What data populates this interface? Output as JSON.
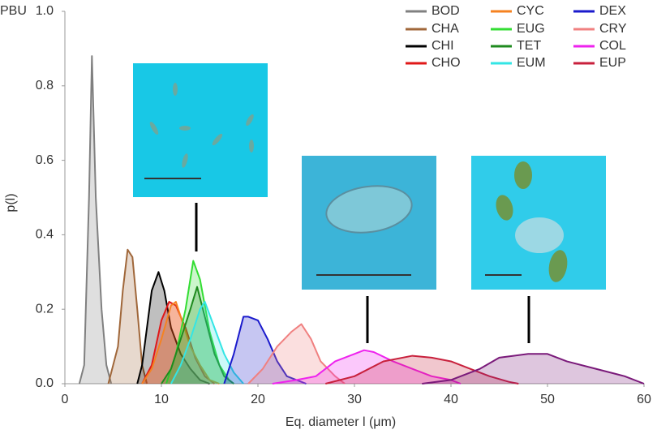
{
  "chart_data": {
    "type": "area",
    "x_label": "Eq. diameter l (μm)",
    "y_label": "p(l)",
    "xlim": [
      0,
      60
    ],
    "ylim": [
      0,
      1.0
    ],
    "xticks": [
      0,
      10,
      20,
      30,
      40,
      50,
      60
    ],
    "yticks": [
      {
        "value": 0,
        "label": "0.0"
      },
      {
        "value": 0.2,
        "label": "0.2"
      },
      {
        "value": 0.4,
        "label": "0.4"
      },
      {
        "value": 0.6,
        "label": "0.6"
      },
      {
        "value": 0.8,
        "label": "0.8"
      },
      {
        "value": 1.0,
        "label": "1.0"
      }
    ],
    "legend": "upper right",
    "series": [
      {
        "name": "BOD",
        "color": "#808080",
        "x": [
          1.5,
          2,
          2.5,
          2.8,
          3.2,
          3.8,
          4.3,
          4.8
        ],
        "values": [
          0,
          0.05,
          0.5,
          0.88,
          0.5,
          0.2,
          0.05,
          0
        ]
      },
      {
        "name": "CHA",
        "color": "#a0673a",
        "x": [
          4.5,
          5.5,
          6,
          6.5,
          7,
          7.5,
          8,
          8.5
        ],
        "values": [
          0,
          0.1,
          0.25,
          0.36,
          0.34,
          0.2,
          0.05,
          0
        ]
      },
      {
        "name": "CHI",
        "color": "#000000",
        "x": [
          7.5,
          8,
          8.5,
          9,
          9.7,
          10.3,
          11,
          12,
          13,
          14,
          15
        ],
        "values": [
          0,
          0.05,
          0.15,
          0.25,
          0.3,
          0.25,
          0.15,
          0.08,
          0.04,
          0.01,
          0
        ]
      },
      {
        "name": "CHO",
        "color": "#e01818",
        "x": [
          8,
          9,
          10,
          10.8,
          11.5,
          12.5,
          13.5,
          14.5,
          15.5
        ],
        "values": [
          0,
          0.05,
          0.17,
          0.22,
          0.21,
          0.15,
          0.07,
          0.02,
          0
        ]
      },
      {
        "name": "CYC",
        "color": "#f58220",
        "x": [
          8,
          9,
          10,
          11,
          11.5,
          12,
          13,
          14,
          15,
          16
        ],
        "values": [
          0,
          0.04,
          0.12,
          0.21,
          0.22,
          0.18,
          0.1,
          0.05,
          0.01,
          0
        ]
      },
      {
        "name": "EUG",
        "color": "#33dd33",
        "x": [
          10.5,
          11.5,
          12.5,
          13.3,
          14,
          15,
          16,
          17,
          17.5
        ],
        "values": [
          0,
          0.08,
          0.2,
          0.33,
          0.28,
          0.14,
          0.05,
          0.01,
          0
        ]
      },
      {
        "name": "TET",
        "color": "#1e8a1e",
        "x": [
          10,
          11,
          12,
          13,
          13.7,
          14.5,
          15.5,
          16.5,
          17.5
        ],
        "values": [
          0,
          0.04,
          0.12,
          0.2,
          0.26,
          0.18,
          0.08,
          0.02,
          0
        ]
      },
      {
        "name": "EUM",
        "color": "#33e5e5",
        "x": [
          11,
          12,
          13,
          14,
          14.5,
          15.5,
          16.5,
          17.5,
          18.5
        ],
        "values": [
          0,
          0.05,
          0.12,
          0.2,
          0.22,
          0.15,
          0.08,
          0.03,
          0
        ]
      },
      {
        "name": "DEX",
        "color": "#1a1acc",
        "x": [
          16.5,
          17.5,
          18.5,
          19,
          20,
          21,
          22,
          23,
          25
        ],
        "values": [
          0,
          0.08,
          0.18,
          0.18,
          0.17,
          0.12,
          0.06,
          0.02,
          0
        ]
      },
      {
        "name": "CRY",
        "color": "#f08080",
        "x": [
          19,
          20.5,
          22,
          23.5,
          24.5,
          25.5,
          26.5,
          28,
          29
        ],
        "values": [
          0,
          0.04,
          0.1,
          0.14,
          0.16,
          0.12,
          0.06,
          0.02,
          0
        ]
      },
      {
        "name": "COL",
        "color": "#ee22ee",
        "x": [
          21.5,
          24,
          26,
          28,
          30,
          31,
          32,
          34,
          36,
          38,
          40,
          41
        ],
        "values": [
          0,
          0.01,
          0.02,
          0.06,
          0.08,
          0.09,
          0.085,
          0.06,
          0.04,
          0.02,
          0.01,
          0
        ]
      },
      {
        "name": "EUP",
        "color": "#c8203c",
        "x": [
          27,
          30,
          33,
          36,
          38,
          40,
          42,
          44,
          46,
          47
        ],
        "values": [
          0,
          0.02,
          0.06,
          0.075,
          0.07,
          0.06,
          0.04,
          0.02,
          0.005,
          0
        ]
      },
      {
        "name": "PBU",
        "color": "#7a1a7a",
        "x": [
          37,
          40,
          43,
          45,
          48,
          50,
          52,
          55,
          58,
          60
        ],
        "values": [
          0,
          0.01,
          0.04,
          0.07,
          0.08,
          0.08,
          0.06,
          0.04,
          0.02,
          0
        ]
      }
    ]
  }
}
